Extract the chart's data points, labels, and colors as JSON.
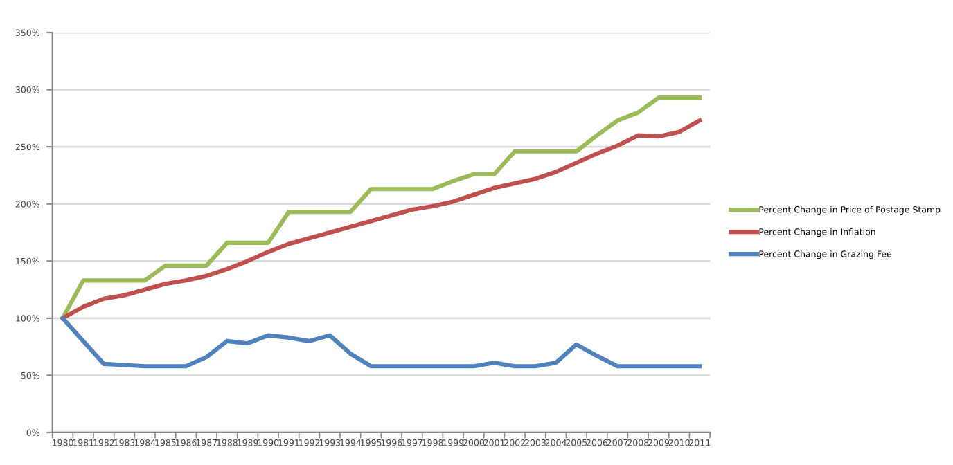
{
  "chart_data": {
    "type": "line",
    "categories": [
      "1980",
      "1981",
      "1982",
      "1983",
      "1984",
      "1985",
      "1986",
      "1987",
      "1988",
      "1989",
      "1990",
      "1991",
      "1992",
      "1993",
      "1994",
      "1995",
      "1996",
      "1997",
      "1998",
      "1999",
      "2000",
      "2001",
      "2002",
      "2003",
      "2004",
      "2005",
      "2006",
      "2007",
      "2008",
      "2009",
      "2010",
      "2011"
    ],
    "series": [
      {
        "name": "Percent Change in Price of Postage Stamp",
        "color": "#9bbb59",
        "values": [
          100,
          133,
          133,
          133,
          133,
          146,
          146,
          146,
          166,
          166,
          166,
          193,
          193,
          193,
          193,
          213,
          213,
          213,
          213,
          220,
          226,
          226,
          246,
          246,
          246,
          246,
          260,
          273,
          280,
          293,
          293,
          293
        ]
      },
      {
        "name": "Percent Change in Inflation",
        "color": "#c0504d",
        "values": [
          100,
          110,
          117,
          120,
          125,
          130,
          133,
          137,
          143,
          150,
          158,
          165,
          170,
          175,
          180,
          185,
          190,
          195,
          198,
          202,
          208,
          214,
          218,
          222,
          228,
          236,
          244,
          251,
          260,
          259,
          263,
          273
        ]
      },
      {
        "name": "Percent Change in Grazing Fee",
        "color": "#4f81bd",
        "values": [
          100,
          80,
          60,
          59,
          58,
          58,
          58,
          66,
          80,
          78,
          85,
          83,
          80,
          85,
          69,
          58,
          58,
          58,
          58,
          58,
          58,
          61,
          58,
          58,
          61,
          77,
          67,
          58,
          58,
          58,
          58,
          58
        ]
      }
    ],
    "ylim": [
      0,
      350
    ],
    "yticks": [
      {
        "value": 0,
        "label": "0%"
      },
      {
        "value": 50,
        "label": "50%"
      },
      {
        "value": 100,
        "label": "100%"
      },
      {
        "value": 150,
        "label": "150%"
      },
      {
        "value": 200,
        "label": "200%"
      },
      {
        "value": 250,
        "label": "250%"
      },
      {
        "value": 300,
        "label": "300%"
      },
      {
        "value": 350,
        "label": "350%"
      }
    ],
    "grid": "y",
    "legend": "right",
    "marker": "none",
    "line_style": "solid"
  }
}
